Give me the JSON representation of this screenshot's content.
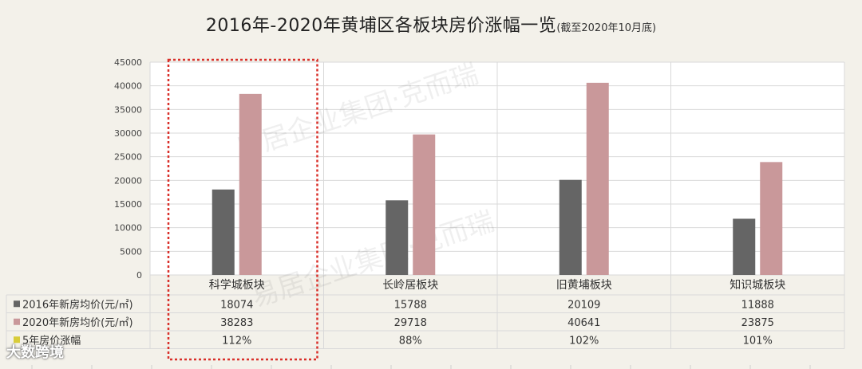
{
  "title": "2016年-2020年黄埔区各板块房价涨幅一览",
  "subtitle": "(截至2020年10月底)",
  "watermarks": [
    "易居企业集团·克而瑞"
  ],
  "corner_logo": "大数跨境",
  "colors": {
    "series_2016": "#656565",
    "series_2020": "#c9989a",
    "growth": "#d8cc3a",
    "highlight_border": "#d9302a"
  },
  "chart_data": {
    "type": "bar",
    "title": "2016年-2020年黄埔区各板块房价涨幅一览",
    "subtitle": "(截至2020年10月底)",
    "categories": [
      "科学城板块",
      "长岭居板块",
      "旧黄埔板块",
      "知识城板块"
    ],
    "series": [
      {
        "name": "2016年新房均价(元/㎡)",
        "values": [
          18074,
          15788,
          20109,
          11888
        ]
      },
      {
        "name": "2020年新房均价(元/㎡)",
        "values": [
          38283,
          29718,
          40641,
          23875
        ]
      }
    ],
    "table_rows": [
      {
        "name": "2016年新房均价(元/㎡)",
        "cells": [
          "18074",
          "15788",
          "20109",
          "11888"
        ]
      },
      {
        "name": "2020年新房均价(元/㎡)",
        "cells": [
          "38283",
          "29718",
          "40641",
          "23875"
        ]
      },
      {
        "name": "5年房价涨幅",
        "cells": [
          "112%",
          "88%",
          "102%",
          "101%"
        ]
      }
    ],
    "ylim": [
      0,
      45000
    ],
    "yticks": [
      0,
      5000,
      10000,
      15000,
      20000,
      25000,
      30000,
      35000,
      40000,
      45000
    ],
    "grid": true,
    "highlighted_category": "科学城板块"
  }
}
